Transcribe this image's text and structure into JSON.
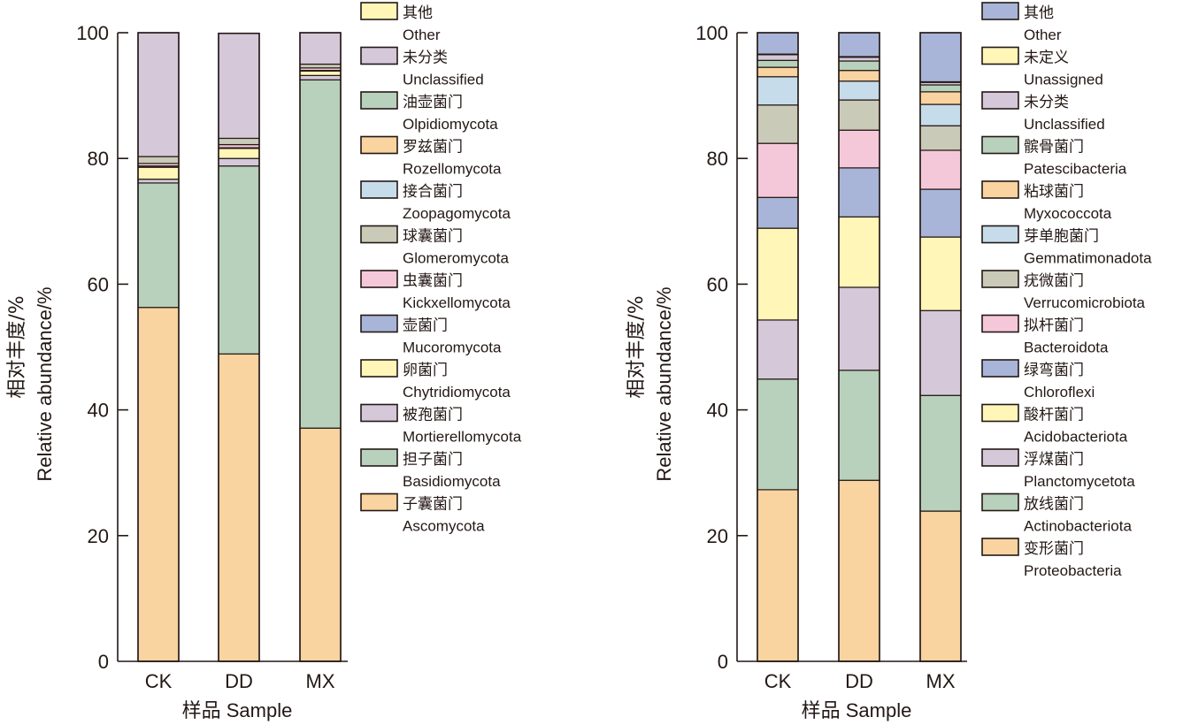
{
  "chart_data": [
    {
      "type": "bar",
      "stacked": true,
      "title": "",
      "xlabel": "样品 Sample",
      "ylabel_cn": "相对丰度/%",
      "ylabel_en": "Relative abundance/%",
      "ylim": [
        0,
        100
      ],
      "yticks": [
        0,
        20,
        40,
        60,
        80,
        100
      ],
      "categories": [
        "CK",
        "DD",
        "MX"
      ],
      "legend_position": "right",
      "series": [
        {
          "name_cn": "子囊菌门",
          "name": "Ascomycota",
          "color": "#f9d3a0",
          "values": [
            56.3,
            48.9,
            37.1
          ]
        },
        {
          "name_cn": "担子菌门",
          "name": "Basidiomycota",
          "color": "#b8d1bc",
          "values": [
            19.8,
            29.9,
            55.4
          ]
        },
        {
          "name_cn": "被孢菌门",
          "name": "Mortierellomycota",
          "color": "#d4c8d9",
          "values": [
            0.6,
            1.2,
            0.7
          ]
        },
        {
          "name_cn": "卵菌门",
          "name": "Chytridiomycota",
          "color": "#fff6b8",
          "values": [
            1.9,
            1.6,
            0.7
          ]
        },
        {
          "name_cn": "壶菌门",
          "name": "Mucoromycota",
          "color": "#a8b5d8",
          "values": [
            0.2,
            0.1,
            0.1
          ]
        },
        {
          "name_cn": "虫囊菌门",
          "name": "Kickxellomycota",
          "color": "#f5c8d9",
          "values": [
            0.4,
            0.5,
            0.4
          ]
        },
        {
          "name_cn": "球囊菌门",
          "name": "Glomeromycota",
          "color": "#c9cab8",
          "values": [
            1.1,
            1.0,
            0.6
          ]
        },
        {
          "name_cn": "接合菌门",
          "name": "Zoopagomycota",
          "color": "#c6dcea",
          "values": [
            0.0,
            0.0,
            0.0
          ]
        },
        {
          "name_cn": "罗兹菌门",
          "name": "Rozellomycota",
          "color": "#f9d3a0",
          "values": [
            0.0,
            0.0,
            0.0
          ]
        },
        {
          "name_cn": "油壶菌门",
          "name": "Olpidiomycota",
          "color": "#b8d1bc",
          "values": [
            0.0,
            0.0,
            0.0
          ]
        },
        {
          "name_cn": "未分类",
          "name": "Unclassified",
          "color": "#d4c8d9",
          "values": [
            19.7,
            16.7,
            5.0
          ]
        },
        {
          "name_cn": "其他",
          "name": "Other",
          "color": "#fff6b8",
          "values": [
            0.0,
            0.0,
            0.0
          ]
        }
      ]
    },
    {
      "type": "bar",
      "stacked": true,
      "title": "",
      "xlabel": "样品 Sample",
      "ylabel_cn": "相对丰度/%",
      "ylabel_en": "Relative abundance/%",
      "ylim": [
        0,
        100
      ],
      "yticks": [
        0,
        20,
        40,
        60,
        80,
        100
      ],
      "categories": [
        "CK",
        "DD",
        "MX"
      ],
      "legend_position": "right",
      "series": [
        {
          "name_cn": "变形菌门",
          "name": "Proteobacteria",
          "color": "#f9d3a0",
          "values": [
            27.3,
            28.8,
            23.9
          ]
        },
        {
          "name_cn": "放线菌门",
          "name": "Actinobacteriota",
          "color": "#b8d1bc",
          "values": [
            17.6,
            17.5,
            18.4
          ]
        },
        {
          "name_cn": "浮煤菌门",
          "name": "Planctomycetota",
          "color": "#d4c8d9",
          "values": [
            9.4,
            13.2,
            13.5
          ]
        },
        {
          "name_cn": "酸杆菌门",
          "name": "Acidobacteriota",
          "color": "#fff6b8",
          "values": [
            14.6,
            11.2,
            11.7
          ]
        },
        {
          "name_cn": "绿弯菌门",
          "name": "Chloroflexi",
          "color": "#a8b5d8",
          "values": [
            4.9,
            7.8,
            7.6
          ]
        },
        {
          "name_cn": "拟杆菌门",
          "name": "Bacteroidota",
          "color": "#f5c8d9",
          "values": [
            8.6,
            6.0,
            6.2
          ]
        },
        {
          "name_cn": "疣微菌门",
          "name": "Verrucomicrobiota",
          "color": "#c9cab8",
          "values": [
            6.1,
            4.8,
            3.9
          ]
        },
        {
          "name_cn": "芽单胞菌门",
          "name": "Gemmatimonadota",
          "color": "#c6dcea",
          "values": [
            4.5,
            3.0,
            3.4
          ]
        },
        {
          "name_cn": "粘球菌门",
          "name": "Myxococcota",
          "color": "#f9d3a0",
          "values": [
            1.5,
            1.7,
            2.0
          ]
        },
        {
          "name_cn": "髌骨菌门",
          "name": "Patescibacteria",
          "color": "#b8d1bc",
          "values": [
            1.1,
            1.5,
            1.1
          ]
        },
        {
          "name_cn": "未分类",
          "name": "Unclassified",
          "color": "#d4c8d9",
          "values": [
            0.9,
            0.6,
            0.4
          ]
        },
        {
          "name_cn": "未定义",
          "name": "Unassigned",
          "color": "#fff6b8",
          "values": [
            0.1,
            0.1,
            0.1
          ]
        },
        {
          "name_cn": "其他",
          "name": "Other",
          "color": "#a8b5d8",
          "values": [
            3.4,
            3.8,
            7.8
          ]
        }
      ]
    }
  ]
}
